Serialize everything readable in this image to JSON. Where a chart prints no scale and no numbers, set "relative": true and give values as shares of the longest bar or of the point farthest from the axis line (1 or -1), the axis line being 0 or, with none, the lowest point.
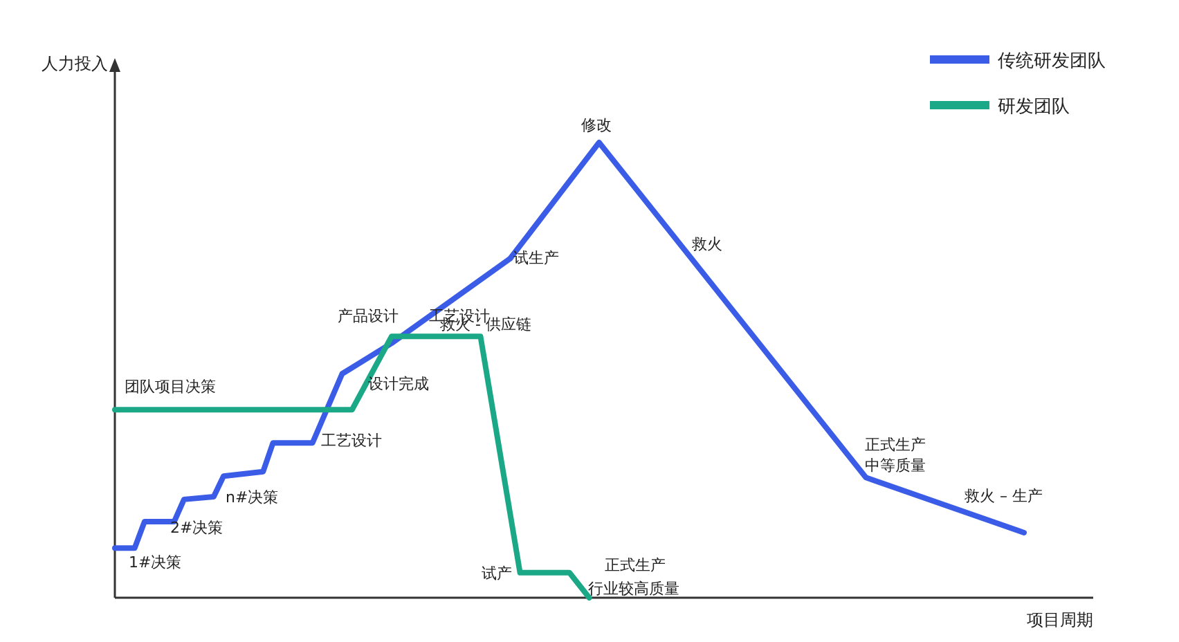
{
  "chart_data": {
    "type": "line",
    "relative": true,
    "ylabel": "人力投入",
    "xlabel": "项目周期",
    "legend": "top right",
    "categories": [
      null,
      null,
      null,
      null,
      null,
      null,
      null,
      null,
      null,
      null,
      null,
      null,
      null,
      null,
      null,
      null,
      null,
      null,
      null,
      null,
      null,
      null,
      null,
      null,
      null,
      null,
      null,
      null,
      null,
      null,
      null,
      null,
      null,
      null,
      null,
      null,
      null,
      null,
      null,
      null,
      null,
      null,
      null,
      null,
      null,
      null,
      null,
      null,
      null,
      null,
      null,
      null,
      null,
      null,
      null,
      null,
      null,
      null,
      null,
      null,
      null,
      null,
      null,
      null,
      null,
      null,
      null,
      null,
      null,
      null,
      null,
      null,
      null,
      null,
      null,
      null,
      null,
      null,
      null,
      null,
      null,
      null,
      null,
      null,
      null,
      null,
      null,
      null,
      null,
      null,
      null,
      null,
      null,
      null,
      null,
      null,
      null,
      null,
      null,
      null
    ],
    "series": [
      {
        "name": "传统研发团队",
        "color": "#3b5ce6",
        "values": [
          0.109,
          null,
          0.109,
          0.167,
          null,
          null,
          0.167,
          0.216,
          null,
          null,
          0.222,
          0.267,
          null,
          null,
          null,
          0.277,
          0.34,
          null,
          null,
          null,
          0.34,
          null,
          null,
          0.492,
          null,
          null,
          null,
          null,
          0.559,
          null,
          null,
          null,
          null,
          null,
          null,
          null,
          null,
          null,
          null,
          null,
          0.745,
          null,
          null,
          null,
          null,
          null,
          null,
          null,
          null,
          1,
          null,
          null,
          null,
          null,
          null,
          null,
          null,
          null,
          null,
          null,
          null,
          null,
          null,
          null,
          null,
          null,
          null,
          null,
          null,
          null,
          null,
          null,
          null,
          null,
          null,
          null,
          0.264,
          null,
          null,
          null,
          null,
          null,
          null,
          null,
          null,
          null,
          null,
          null,
          null,
          null,
          null,
          null,
          0.143,
          null,
          null,
          null,
          null,
          null,
          null,
          null
        ]
      },
      {
        "name": "研发团队",
        "color": "#1aa886",
        "values": [
          0.413,
          null,
          null,
          null,
          null,
          null,
          null,
          null,
          null,
          null,
          null,
          null,
          null,
          null,
          null,
          null,
          null,
          null,
          null,
          null,
          null,
          null,
          null,
          null,
          0.413,
          null,
          null,
          null,
          0.574,
          null,
          null,
          null,
          null,
          null,
          null,
          null,
          null,
          0.574,
          null,
          null,
          null,
          0.055,
          null,
          null,
          null,
          null,
          0.055,
          null,
          0,
          null,
          null,
          null,
          null,
          null,
          null,
          null,
          null,
          null,
          null,
          null,
          null,
          null,
          null,
          null,
          null,
          null,
          null,
          null,
          null,
          null,
          null,
          null,
          null,
          null,
          null,
          null,
          null,
          null,
          null,
          null,
          null,
          null,
          null,
          null,
          null,
          null,
          null,
          null,
          null,
          null,
          null,
          null,
          null,
          null,
          null,
          null,
          null,
          null,
          null,
          null
        ]
      }
    ],
    "annotations": [
      "团队项目决策",
      "1#决策",
      "2#决策",
      "n#决策",
      "工艺设计",
      "设计完成",
      "产品设计",
      "工艺设计",
      "救火 - 供应链",
      "试生产",
      "修改",
      "救火",
      "正式生产",
      "中等质量",
      "救火 – 生产",
      "试产",
      "正式生产",
      "行业较高质量"
    ]
  }
}
